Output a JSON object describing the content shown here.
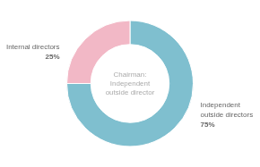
{
  "chart_data": {
    "type": "doughnut",
    "categories": [
      "Independent\noutside directors",
      "Internal directors"
    ],
    "values": [
      75,
      25
    ],
    "value_labels": [
      "75%",
      "25%"
    ],
    "data_labels": true,
    "colors": [
      "#7fbfcf",
      "#f2b8c6"
    ],
    "annotations": [
      "Chairman:",
      "Independent",
      "outside director"
    ],
    "legend": false
  }
}
